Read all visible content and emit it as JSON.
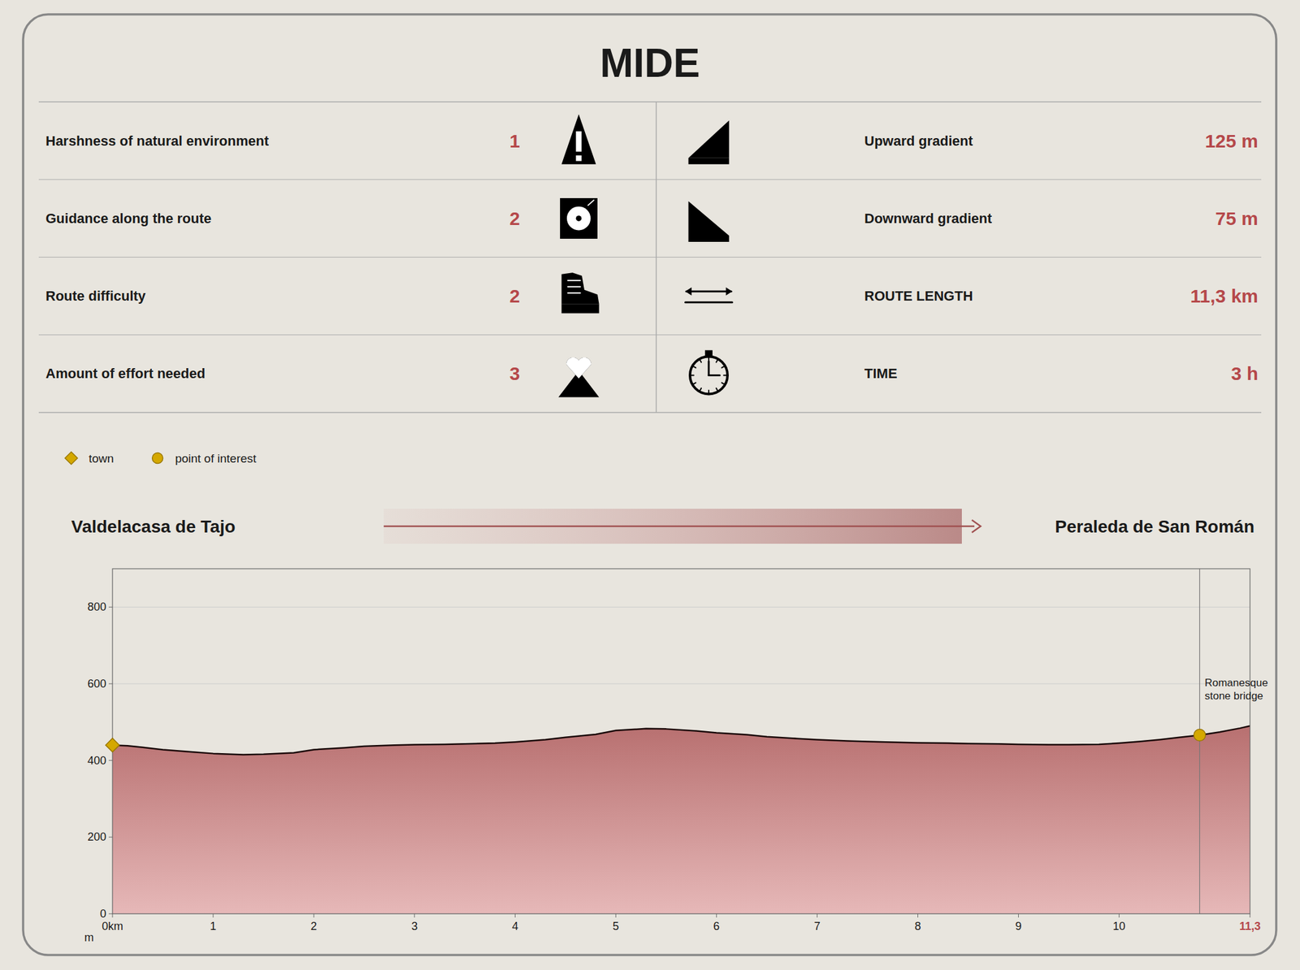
{
  "chart_data": {
    "type": "area",
    "title": "MIDE",
    "left_rows": [
      {
        "label": "Harshness of natural environment",
        "value": 1,
        "color": "#b5484a"
      },
      {
        "label": "Guidance along the route",
        "value": 2,
        "color": "#b5484a"
      },
      {
        "label": "Route difficulty",
        "value": 2,
        "color": "#b5484a"
      },
      {
        "label": "Amount of effort needed",
        "value": 3,
        "color": "#b5484a"
      }
    ],
    "right_rows": [
      {
        "label": "Upward gradient",
        "value": "125 m",
        "color": "#b5484a"
      },
      {
        "label": "Downward gradient",
        "value": "75 m",
        "color": "#b5484a"
      },
      {
        "label": "ROUTE LENGTH",
        "value": "11,3 km",
        "color": "#b5484a"
      },
      {
        "label": "TIME",
        "value": "3 h",
        "color": "#b5484a"
      }
    ],
    "start_label": "Valdelacasa de Tajo",
    "end_label": "Peraleda de San Román",
    "x": [
      0.0,
      0.15,
      0.3,
      0.5,
      0.8,
      1.0,
      1.3,
      1.5,
      1.8,
      2.0,
      2.3,
      2.5,
      2.8,
      3.0,
      3.3,
      3.5,
      3.8,
      4.0,
      4.3,
      4.5,
      4.8,
      5.0,
      5.3,
      5.5,
      5.8,
      6.0,
      6.3,
      6.5,
      6.8,
      7.0,
      7.3,
      7.5,
      7.8,
      8.0,
      8.3,
      8.5,
      8.8,
      9.0,
      9.3,
      9.5,
      9.8,
      10.0,
      10.2,
      10.4,
      10.6,
      10.8,
      11.0,
      11.2,
      11.3
    ],
    "values": [
      440,
      438,
      434,
      428,
      422,
      418,
      415,
      416,
      420,
      428,
      433,
      437,
      440,
      441,
      442,
      443,
      445,
      448,
      454,
      460,
      468,
      478,
      483,
      482,
      477,
      472,
      467,
      462,
      457,
      454,
      451,
      449,
      447,
      446,
      445,
      444,
      443,
      442,
      441,
      441,
      442,
      445,
      449,
      454,
      460,
      466,
      474,
      484,
      490
    ],
    "color": "#1a0808",
    "series": [
      {
        "name": "town",
        "type": "scatter",
        "marker": "diamond",
        "color": "#d4a800",
        "x": [
          0.0
        ],
        "values": [
          440
        ]
      },
      {
        "name": "point of interest",
        "type": "scatter",
        "marker": "circle",
        "color": "#d4a800",
        "x": [
          10.8
        ],
        "values": [
          466
        ]
      }
    ],
    "annotations": [
      {
        "text": "Romanesque\nstone bridge",
        "x": 10.8
      }
    ],
    "ylabel": "m",
    "xlim": [
      0,
      11.3
    ],
    "ylim": [
      0,
      900
    ],
    "yticks": [
      0,
      200,
      400,
      600,
      800
    ],
    "xticks": [
      {
        "value": 0,
        "label": "0km"
      },
      1,
      2,
      3,
      4,
      5,
      6,
      7,
      8,
      9,
      10,
      {
        "value": 11.3,
        "label": "11,3",
        "color": "#b5484a"
      }
    ],
    "grid": "y",
    "legend": "top"
  }
}
